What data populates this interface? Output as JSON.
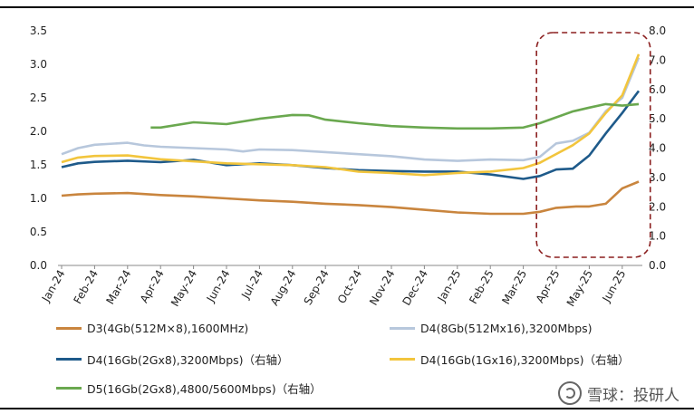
{
  "chart_data": {
    "type": "line",
    "x": [
      "Jan-24",
      "Feb-24",
      "Mar-24",
      "Apr-24",
      "May-24",
      "Jun-24",
      "Jul-24",
      "Aug-24",
      "Sep-24",
      "Oct-24",
      "Nov-24",
      "Dec-24",
      "Jan-25",
      "Feb-25",
      "Mar-25",
      "Apr-25",
      "May-25",
      "Jun-25"
    ],
    "left_axis": {
      "range": [
        0,
        3.5
      ],
      "ticks": [
        "0.0",
        "0.5",
        "1.0",
        "1.5",
        "2.0",
        "2.5",
        "3.0",
        "3.5"
      ]
    },
    "right_axis": {
      "range": [
        0,
        8
      ],
      "ticks": [
        "0.0",
        "1.0",
        "2.0",
        "3.0",
        "4.0",
        "5.0",
        "6.0",
        "7.0",
        "8.0"
      ]
    },
    "series": [
      {
        "name": "D3(4Gb(512M×8),1600MHz)",
        "axis": "left",
        "color": "#c9853e",
        "points": [
          [
            0,
            1.04
          ],
          [
            0.5,
            1.06
          ],
          [
            1,
            1.07
          ],
          [
            2,
            1.08
          ],
          [
            3,
            1.05
          ],
          [
            4,
            1.03
          ],
          [
            5,
            1.0
          ],
          [
            6,
            0.97
          ],
          [
            7,
            0.95
          ],
          [
            8,
            0.92
          ],
          [
            9,
            0.9
          ],
          [
            10,
            0.87
          ],
          [
            11,
            0.83
          ],
          [
            12,
            0.79
          ],
          [
            13,
            0.77
          ],
          [
            14,
            0.77
          ],
          [
            14.5,
            0.8
          ],
          [
            15,
            0.86
          ],
          [
            15.6,
            0.88
          ],
          [
            16,
            0.88
          ],
          [
            16.5,
            0.92
          ],
          [
            17,
            1.15
          ],
          [
            17.5,
            1.25
          ]
        ]
      },
      {
        "name": "D4(8Gb(512Mx16),3200Mbps)",
        "axis": "left",
        "color": "#b7c7dc",
        "points": [
          [
            0,
            1.66
          ],
          [
            0.5,
            1.75
          ],
          [
            1,
            1.8
          ],
          [
            2,
            1.83
          ],
          [
            2.5,
            1.79
          ],
          [
            3,
            1.77
          ],
          [
            4,
            1.75
          ],
          [
            5,
            1.73
          ],
          [
            5.5,
            1.7
          ],
          [
            6,
            1.73
          ],
          [
            7,
            1.72
          ],
          [
            8,
            1.69
          ],
          [
            9,
            1.66
          ],
          [
            10,
            1.63
          ],
          [
            11,
            1.58
          ],
          [
            12,
            1.56
          ],
          [
            13,
            1.58
          ],
          [
            14,
            1.57
          ],
          [
            14.5,
            1.62
          ],
          [
            15,
            1.82
          ],
          [
            15.5,
            1.86
          ],
          [
            16,
            1.98
          ],
          [
            16.5,
            2.3
          ],
          [
            17,
            2.5
          ],
          [
            17.5,
            3.1
          ]
        ]
      },
      {
        "name": "D4(16Gb(2Gx8),3200Mbps)（右轴）",
        "axis": "right",
        "color": "#1e5a8a",
        "points": [
          [
            0,
            3.35
          ],
          [
            0.5,
            3.48
          ],
          [
            1,
            3.53
          ],
          [
            2,
            3.57
          ],
          [
            3,
            3.52
          ],
          [
            4,
            3.6
          ],
          [
            5,
            3.42
          ],
          [
            6,
            3.48
          ],
          [
            7,
            3.42
          ],
          [
            8,
            3.32
          ],
          [
            9,
            3.25
          ],
          [
            10,
            3.22
          ],
          [
            11,
            3.2
          ],
          [
            12,
            3.2
          ],
          [
            13,
            3.1
          ],
          [
            14,
            2.95
          ],
          [
            14.5,
            3.05
          ],
          [
            15,
            3.27
          ],
          [
            15.5,
            3.3
          ],
          [
            16,
            3.75
          ],
          [
            16.5,
            4.5
          ],
          [
            17,
            5.2
          ],
          [
            17.5,
            5.95
          ]
        ]
      },
      {
        "name": "D4(16Gb(1Gx16),3200Mbps)（右轴）",
        "axis": "right",
        "color": "#f2c53d",
        "points": [
          [
            0,
            3.52
          ],
          [
            0.5,
            3.68
          ],
          [
            1,
            3.73
          ],
          [
            2,
            3.75
          ],
          [
            3,
            3.62
          ],
          [
            4,
            3.55
          ],
          [
            5,
            3.48
          ],
          [
            6,
            3.45
          ],
          [
            7,
            3.42
          ],
          [
            8,
            3.35
          ],
          [
            9,
            3.2
          ],
          [
            10,
            3.15
          ],
          [
            11,
            3.08
          ],
          [
            12,
            3.15
          ],
          [
            13,
            3.2
          ],
          [
            14,
            3.32
          ],
          [
            14.5,
            3.5
          ],
          [
            15,
            3.8
          ],
          [
            15.5,
            4.1
          ],
          [
            16,
            4.5
          ],
          [
            16.5,
            5.2
          ],
          [
            17,
            5.8
          ],
          [
            17.5,
            7.2
          ]
        ]
      },
      {
        "name": "D5(16Gb(2Gx8),4800/5600Mbps)（右轴）",
        "axis": "right",
        "color": "#6aa84f",
        "points": [
          [
            2.7,
            4.7
          ],
          [
            3,
            4.7
          ],
          [
            4,
            4.88
          ],
          [
            5,
            4.82
          ],
          [
            6,
            5.0
          ],
          [
            7,
            5.13
          ],
          [
            7.5,
            5.12
          ],
          [
            8,
            4.97
          ],
          [
            9,
            4.85
          ],
          [
            10,
            4.75
          ],
          [
            11,
            4.7
          ],
          [
            12,
            4.67
          ],
          [
            13,
            4.67
          ],
          [
            14,
            4.7
          ],
          [
            14.5,
            4.85
          ],
          [
            15,
            5.05
          ],
          [
            15.5,
            5.25
          ],
          [
            16,
            5.38
          ],
          [
            16.5,
            5.5
          ],
          [
            17,
            5.45
          ],
          [
            17.5,
            5.5
          ]
        ]
      }
    ],
    "highlight": {
      "x_from": 14.4,
      "x_to": 17.85,
      "color": "#8b1f1f"
    }
  },
  "watermark": {
    "text": "雪球：投研人",
    "icon": "snowball-icon"
  }
}
